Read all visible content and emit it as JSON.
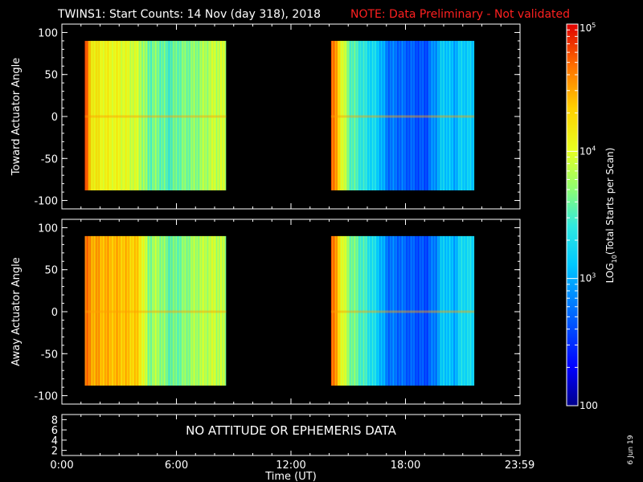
{
  "title": {
    "main": "TWINS1: Start Counts: 14 Nov (day 318), 2018",
    "note": "NOTE: Data Preliminary - Not validated"
  },
  "colors": {
    "background": "#000000",
    "foreground": "#ffffff",
    "note": "#ff2020",
    "colormap": [
      "#00008b",
      "#0000ff",
      "#0078ff",
      "#00d0ff",
      "#40f0d0",
      "#a0ff60",
      "#ffff00",
      "#ffa000",
      "#ff3000",
      "#e00000"
    ]
  },
  "xaxis": {
    "label": "Time (UT)",
    "ticks": [
      "0:00",
      "6:00",
      "12:00",
      "18:00",
      "23:59"
    ],
    "tick_values": [
      0,
      6,
      12,
      18,
      23.983
    ],
    "range": [
      0,
      24
    ]
  },
  "panels": [
    {
      "ylabel": "Toward Actuator Angle",
      "yticks": [
        "100",
        "50",
        "0",
        "-50",
        "-100"
      ]
    },
    {
      "ylabel": "Away Actuator Angle",
      "yticks": [
        "100",
        "50",
        "0",
        "-50",
        "-100"
      ]
    }
  ],
  "aux_panel": {
    "yticks": [
      "8",
      "6",
      "4",
      "2"
    ],
    "message": "NO ATTITUDE OR EPHEMERIS DATA"
  },
  "colorbar": {
    "label": "LOG10(Total Starts per Scan)",
    "label_main": "LOG",
    "label_sub": "10",
    "label_rest": "(Total Starts per Scan)",
    "ticks": [
      {
        "base": "10",
        "exp": "5",
        "value": 100000
      },
      {
        "base": "10",
        "exp": "4",
        "value": 10000
      },
      {
        "base": "10",
        "exp": "3",
        "value": 1000
      },
      {
        "base": "100",
        "exp": "",
        "value": 100
      }
    ],
    "range": [
      100,
      100000
    ],
    "scale": "log"
  },
  "date_stamp": "6 Jun 19",
  "chart_data": {
    "type": "heatmap",
    "title": "TWINS1: Start Counts: 14 Nov (day 318), 2018",
    "subtitle": "NOTE: Data Preliminary - Not validated",
    "xlabel": "Time (UT)",
    "xlim": [
      0,
      24
    ],
    "z_label": "LOG10(Total Starts per Scan)",
    "z_range": [
      100,
      100000
    ],
    "z_scale": "log",
    "data_intervals_hours": [
      [
        1.2,
        8.6
      ],
      [
        14.1,
        21.6
      ]
    ],
    "panels": [
      {
        "ylabel": "Toward Actuator Angle",
        "ylim": [
          -110,
          110
        ],
        "y_extent": [
          -88,
          90
        ],
        "times": [
          1.2,
          1.5,
          2.0,
          3.0,
          4.0,
          4.5,
          5.0,
          5.5,
          6.0,
          7.0,
          8.0,
          8.6,
          14.1,
          14.6,
          15.0,
          16.0,
          16.5,
          17.0,
          18.0,
          19.0,
          19.5,
          20.0,
          20.5,
          21.0,
          21.6
        ],
        "log10_counts": [
          4.9,
          4.2,
          4.1,
          4.05,
          3.9,
          3.6,
          3.65,
          3.5,
          3.6,
          3.7,
          3.9,
          3.9,
          4.8,
          4.1,
          3.6,
          3.3,
          3.2,
          2.8,
          2.7,
          2.6,
          2.9,
          3.2,
          3.0,
          3.2,
          3.1
        ]
      },
      {
        "ylabel": "Away Actuator Angle",
        "ylim": [
          -110,
          110
        ],
        "y_extent": [
          -88,
          90
        ],
        "times": [
          1.2,
          1.5,
          2.0,
          3.0,
          4.0,
          4.5,
          5.0,
          5.5,
          6.0,
          7.0,
          8.0,
          8.6,
          14.1,
          14.6,
          15.0,
          16.0,
          16.5,
          17.0,
          18.0,
          19.0,
          19.5,
          20.0,
          20.5,
          21.0,
          21.6
        ],
        "log10_counts": [
          4.7,
          4.5,
          4.45,
          4.4,
          4.3,
          3.7,
          3.8,
          3.6,
          3.6,
          3.8,
          3.9,
          3.8,
          4.8,
          4.1,
          3.7,
          3.4,
          3.2,
          2.8,
          2.7,
          2.6,
          2.8,
          3.2,
          3.0,
          3.3,
          3.2
        ]
      }
    ]
  }
}
